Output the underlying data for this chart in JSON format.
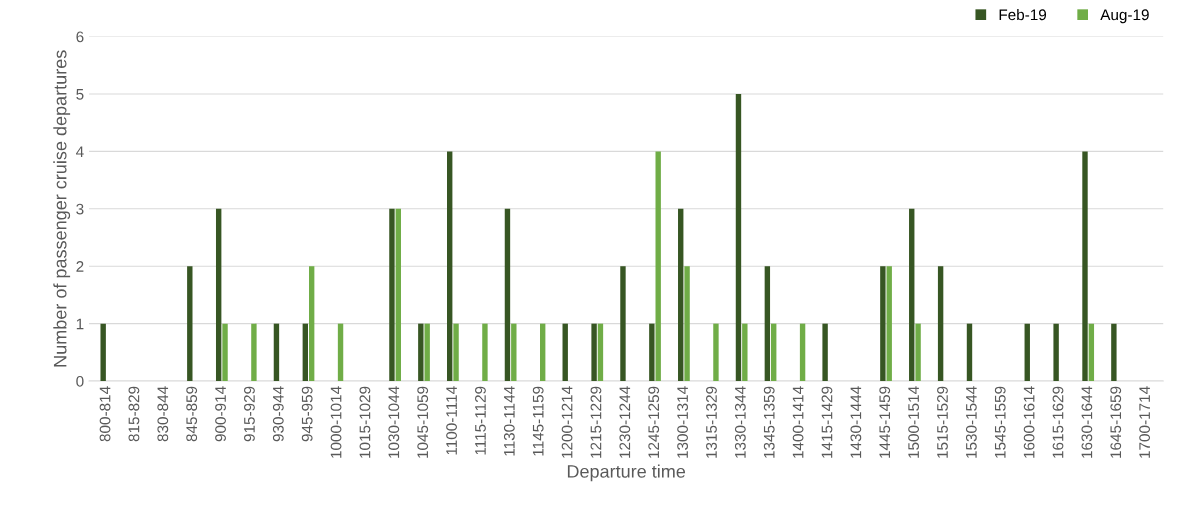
{
  "chart_data": {
    "type": "bar",
    "xlabel": "Departure time",
    "ylabel": "Number of passenger cruise departures",
    "categories": [
      "800-814",
      "815-829",
      "830-844",
      "845-859",
      "900-914",
      "915-929",
      "930-944",
      "945-959",
      "1000-1014",
      "1015-1029",
      "1030-1044",
      "1045-1059",
      "1100-1114",
      "1115-1129",
      "1130-1144",
      "1145-1159",
      "1200-1214",
      "1215-1229",
      "1230-1244",
      "1245-1259",
      "1300-1314",
      "1315-1329",
      "1330-1344",
      "1345-1359",
      "1400-1414",
      "1415-1429",
      "1430-1444",
      "1445-1459",
      "1500-1514",
      "1515-1529",
      "1530-1544",
      "1545-1559",
      "1600-1614",
      "1615-1629",
      "1630-1644",
      "1645-1659",
      "1700-1714"
    ],
    "series": [
      {
        "name": "Feb-19",
        "color": "#375623",
        "values": [
          1,
          0,
          0,
          2,
          3,
          0,
          1,
          1,
          0,
          0,
          3,
          1,
          4,
          0,
          3,
          0,
          1,
          1,
          2,
          1,
          3,
          0,
          5,
          2,
          0,
          1,
          0,
          2,
          3,
          2,
          1,
          0,
          1,
          1,
          4,
          1,
          0
        ]
      },
      {
        "name": "Aug-19",
        "color": "#70ad47",
        "values": [
          0,
          0,
          0,
          0,
          1,
          1,
          0,
          2,
          1,
          0,
          3,
          1,
          1,
          1,
          1,
          1,
          0,
          1,
          0,
          4,
          2,
          1,
          1,
          1,
          1,
          0,
          0,
          2,
          1,
          0,
          0,
          0,
          0,
          0,
          1,
          0,
          0
        ]
      }
    ],
    "ylim": [
      0,
      6
    ],
    "yticks": [
      0,
      1,
      2,
      3,
      4,
      5,
      6
    ],
    "grid": "y",
    "legend": "top right"
  }
}
